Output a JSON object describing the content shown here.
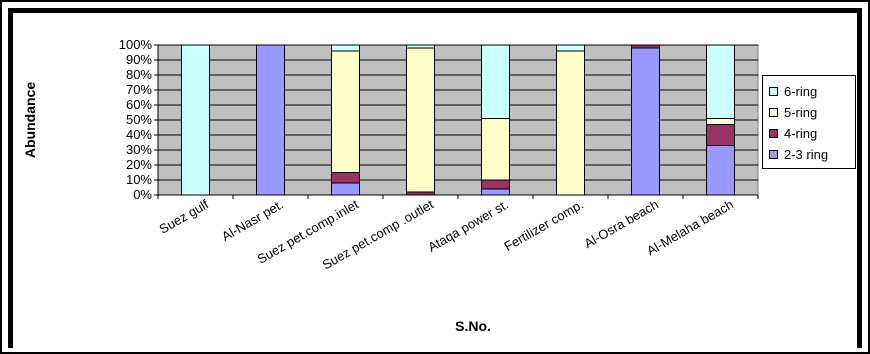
{
  "chart_data": {
    "type": "bar",
    "stacked": "percent",
    "xlabel": "S.No.",
    "ylabel": "Abundance",
    "ylim": [
      0,
      100
    ],
    "yticks": [
      "0%",
      "10%",
      "20%",
      "30%",
      "40%",
      "50%",
      "60%",
      "70%",
      "80%",
      "90%",
      "100%"
    ],
    "categories": [
      "Suez gulf",
      "Al-Nasr pet.",
      "Suez pet.comp.inlet",
      "Suez pet.comp .outlet",
      "Ataqa power st.",
      "Fertilizer comp.",
      "Al-Osra beach",
      "Al-Melaha beach"
    ],
    "series": [
      {
        "name": "2-3 ring",
        "color": "#9999ff",
        "values": [
          0,
          100,
          8,
          0,
          4,
          0,
          98,
          33
        ]
      },
      {
        "name": "4-ring",
        "color": "#993366",
        "values": [
          0,
          0,
          7,
          2,
          6,
          0,
          2,
          14
        ]
      },
      {
        "name": "5-ring",
        "color": "#ffffcc",
        "values": [
          0,
          0,
          81,
          96,
          41,
          96,
          0,
          4
        ]
      },
      {
        "name": "6-ring",
        "color": "#ccffff",
        "values": [
          100,
          0,
          4,
          2,
          49,
          4,
          0,
          49
        ]
      }
    ],
    "legend_order": [
      "6-ring",
      "5-ring",
      "4-ring",
      "2-3 ring"
    ],
    "legend_position": "right",
    "plot_background": "#c0c0c0",
    "grid": true
  }
}
